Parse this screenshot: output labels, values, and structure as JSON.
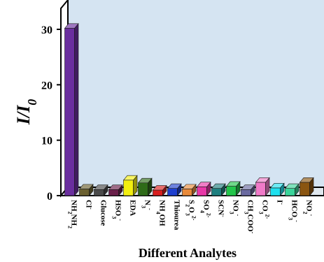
{
  "chart_data": {
    "type": "bar",
    "style": "3d",
    "title": "",
    "xlabel": "Different Analytes",
    "ylabel": "I/I0",
    "ylabel_main": "I/I",
    "ylabel_sub": "0",
    "ylim": [
      0,
      30
    ],
    "yticks": [
      0,
      10,
      20,
      30
    ],
    "grid": false,
    "legend": "none",
    "background_color": "#d5e4f2",
    "categories": [
      {
        "label": "NH",
        "sub": [
          [
            "2",
            "NH"
          ],
          [
            "2",
            ""
          ]
        ],
        "full": "NH2NH2"
      },
      {
        "label": "Cl",
        "sup": "-",
        "full": "Cl-"
      },
      {
        "label": "Glucose",
        "full": "Glucose"
      },
      {
        "label": "HSO",
        "sub": [
          [
            "3",
            ""
          ]
        ],
        "sup": "-",
        "full": "HSO3-"
      },
      {
        "label": "EDA",
        "full": "EDA"
      },
      {
        "label": "N",
        "sub": [
          [
            "3",
            ""
          ]
        ],
        "sup": "-",
        "full": "N3-"
      },
      {
        "label": "NH",
        "sub": [
          [
            "4",
            "OH"
          ]
        ],
        "full": "NH4OH"
      },
      {
        "label": "Thiourea",
        "full": "Thiourea"
      },
      {
        "label": "S",
        "sub": [
          [
            "2",
            "O"
          ],
          [
            "3",
            ""
          ]
        ],
        "sup": "2-",
        "full": "S2O32-"
      },
      {
        "label": "SO",
        "sub": [
          [
            "4",
            ""
          ]
        ],
        "sup": "2-",
        "full": "SO42-"
      },
      {
        "label": "SCN",
        "sup": "-",
        "full": "SCN-"
      },
      {
        "label": "NO",
        "sub": [
          [
            "3",
            ""
          ]
        ],
        "sup": "-",
        "full": "NO3-"
      },
      {
        "label": "CH",
        "sub": [
          [
            "3",
            "COO"
          ]
        ],
        "sup": "-",
        "full": "CH3COO-"
      },
      {
        "label": "CO",
        "sub": [
          [
            "3",
            ""
          ]
        ],
        "sup": "2-",
        "full": "CO32-"
      },
      {
        "label": "I",
        "sup": "-",
        "full": "I-"
      },
      {
        "label": "HCO",
        "sub": [
          [
            "3",
            ""
          ]
        ],
        "sup": "-",
        "full": "HCO3-"
      },
      {
        "label": "NO",
        "sub": [
          [
            "2",
            ""
          ]
        ],
        "sup": "-",
        "full": "NO2-"
      }
    ],
    "values": [
      30.2,
      1.2,
      1.1,
      1.1,
      2.8,
      2.3,
      1.0,
      1.3,
      1.2,
      1.6,
      1.3,
      1.7,
      1.1,
      2.4,
      1.4,
      1.3,
      2.4
    ],
    "colors": [
      "#6a2e9e",
      "#6b6030",
      "#4a4a4a",
      "#6a1f4a",
      "#f2ee10",
      "#2e6b18",
      "#d81e1e",
      "#1e3fcf",
      "#e88a3a",
      "#e838a8",
      "#1e7f7f",
      "#22c54a",
      "#6a6aa0",
      "#f07ac8",
      "#1ee0ee",
      "#3ad49a",
      "#8a5510"
    ]
  }
}
